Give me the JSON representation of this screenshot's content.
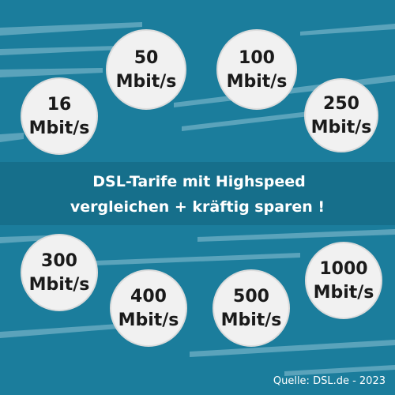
{
  "bubbles": [
    {
      "speed": "16",
      "unit": "Mbit/s"
    },
    {
      "speed": "50",
      "unit": "Mbit/s"
    },
    {
      "speed": "100",
      "unit": "Mbit/s"
    },
    {
      "speed": "250",
      "unit": "Mbit/s"
    },
    {
      "speed": "300",
      "unit": "Mbit/s"
    },
    {
      "speed": "400",
      "unit": "Mbit/s"
    },
    {
      "speed": "500",
      "unit": "Mbit/s"
    },
    {
      "speed": "1000",
      "unit": "Mbit/s"
    }
  ],
  "banner": {
    "line1": "DSL-Tarife mit Highspeed",
    "line2": "vergleichen + kräftig sparen !"
  },
  "source": "Quelle: DSL.de - 2023"
}
